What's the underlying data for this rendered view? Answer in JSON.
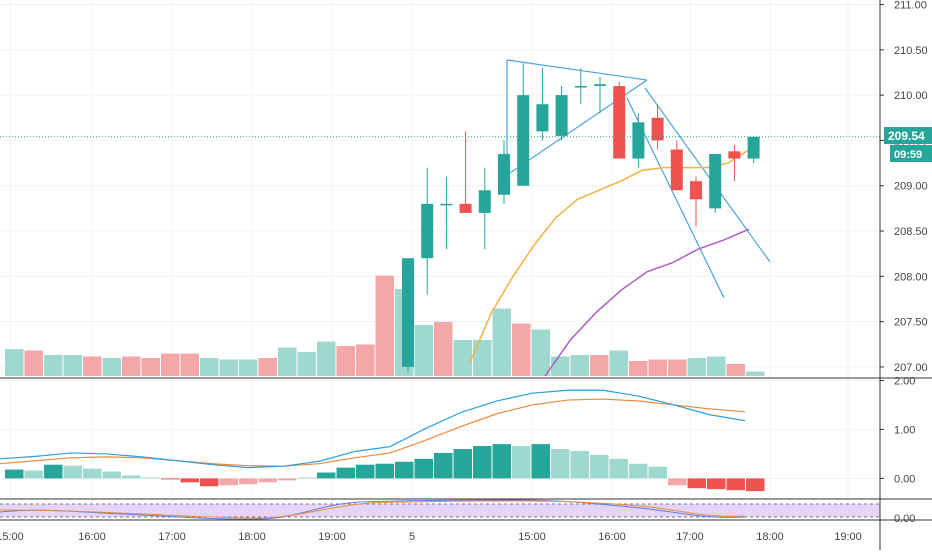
{
  "colors": {
    "up": "#26a69a",
    "down": "#ef5350",
    "vol_up": "#9fd8cf",
    "vol_down": "#f4a7a8",
    "ma_fast": "#f5b041",
    "ma_slow": "#b05cc4",
    "trendline": "#4aa3df",
    "macd_line": "#2e9fe0",
    "signal_line": "#f08a3c",
    "stoch_k": "#5b7fe0",
    "stoch_d": "#f08a3c",
    "stoch_band": "#e4d4f8",
    "grid": "#eef1f5",
    "axis_text": "#444444"
  },
  "price_axis": {
    "ticks": [
      "211.00",
      "210.50",
      "210.00",
      "209.50",
      "209.00",
      "208.50",
      "208.00",
      "207.50",
      "207.00"
    ]
  },
  "macd_axis": {
    "ticks": [
      "2.00",
      "1.00",
      "0.00"
    ]
  },
  "stoch_axis": {
    "ticks": [
      "0.00"
    ]
  },
  "last_price": {
    "label": "209.54",
    "countdown": "09:59"
  },
  "time_axis": {
    "labels": [
      "15:00",
      "16:00",
      "17:00",
      "18:00",
      "19:00",
      "5",
      "15:00",
      "16:00",
      "17:00",
      "18:00",
      "19:00"
    ]
  },
  "chart_data": {
    "type": "candlestick",
    "ylim": [
      206.9,
      211.05
    ],
    "candles": [
      {
        "o": 207.0,
        "h": 208.2,
        "l": 206.95,
        "c": 208.2
      },
      {
        "o": 208.2,
        "h": 209.2,
        "l": 207.8,
        "c": 208.8
      },
      {
        "o": 208.8,
        "h": 209.1,
        "l": 208.3,
        "c": 208.8
      },
      {
        "o": 208.8,
        "h": 209.6,
        "l": 208.7,
        "c": 208.7
      },
      {
        "o": 208.7,
        "h": 209.2,
        "l": 208.3,
        "c": 208.95
      },
      {
        "o": 208.9,
        "h": 209.5,
        "l": 208.8,
        "c": 209.35
      },
      {
        "o": 209.0,
        "h": 210.35,
        "l": 209.0,
        "c": 210.0
      },
      {
        "o": 209.6,
        "h": 210.3,
        "l": 209.5,
        "c": 209.9
      },
      {
        "o": 209.55,
        "h": 210.1,
        "l": 209.5,
        "c": 210.0
      },
      {
        "o": 210.1,
        "h": 210.3,
        "l": 209.9,
        "c": 210.1
      },
      {
        "o": 210.1,
        "h": 210.2,
        "l": 209.8,
        "c": 210.12
      },
      {
        "o": 210.1,
        "h": 210.15,
        "l": 209.3,
        "c": 209.3
      },
      {
        "o": 209.3,
        "h": 209.8,
        "l": 209.2,
        "c": 209.7
      },
      {
        "o": 209.75,
        "h": 209.9,
        "l": 209.4,
        "c": 209.5
      },
      {
        "o": 209.4,
        "h": 209.5,
        "l": 208.95,
        "c": 208.95
      },
      {
        "o": 209.05,
        "h": 209.1,
        "l": 208.55,
        "c": 208.85
      },
      {
        "o": 208.75,
        "h": 209.35,
        "l": 208.7,
        "c": 209.35
      },
      {
        "o": 209.38,
        "h": 209.45,
        "l": 209.05,
        "c": 209.3
      },
      {
        "o": 209.3,
        "h": 209.54,
        "l": 209.25,
        "c": 209.54
      }
    ],
    "ma_fast": [
      207.05,
      207.6,
      208.0,
      208.35,
      208.65,
      208.85,
      208.95,
      209.05,
      209.17,
      209.2,
      209.2,
      209.2,
      209.25,
      209.4
    ],
    "ma_slow": [
      206.9,
      207.3,
      207.6,
      207.85,
      208.05,
      208.15,
      208.3,
      208.4,
      208.52
    ],
    "volume": [
      0.18,
      0.17,
      0.14,
      0.14,
      0.13,
      0.12,
      0.13,
      0.12,
      0.15,
      0.15,
      0.12,
      0.11,
      0.11,
      0.12,
      0.19,
      0.16,
      0.23,
      0.2,
      0.21,
      0.67,
      0.58,
      0.34,
      0.36,
      0.24,
      0.24,
      0.45,
      0.35,
      0.31,
      0.13,
      0.14,
      0.14,
      0.17,
      0.1,
      0.11,
      0.11,
      0.12,
      0.13,
      0.08,
      0.03
    ],
    "volume_up": [
      true,
      false,
      true,
      true,
      false,
      true,
      false,
      false,
      false,
      false,
      true,
      true,
      true,
      false,
      true,
      true,
      true,
      false,
      false,
      false,
      true,
      true,
      false,
      true,
      true,
      true,
      false,
      true,
      true,
      true,
      false,
      true,
      false,
      false,
      false,
      true,
      true,
      false,
      true
    ],
    "macd_hist": [
      0.18,
      0.16,
      0.28,
      0.26,
      0.2,
      0.14,
      0.06,
      0.02,
      -0.02,
      -0.08,
      -0.16,
      -0.14,
      -0.12,
      -0.08,
      -0.04,
      0.02,
      0.12,
      0.22,
      0.28,
      0.3,
      0.34,
      0.4,
      0.52,
      0.6,
      0.66,
      0.7,
      0.66,
      0.7,
      0.6,
      0.56,
      0.48,
      0.4,
      0.3,
      0.24,
      -0.14,
      -0.2,
      -0.22,
      -0.24,
      -0.26
    ],
    "macd_line": [
      0.4,
      0.45,
      0.52,
      0.5,
      0.44,
      0.36,
      0.28,
      0.22,
      0.25,
      0.35,
      0.55,
      0.65,
      1.02,
      1.35,
      1.58,
      1.74,
      1.8,
      1.8,
      1.68,
      1.5,
      1.3,
      1.18
    ],
    "signal_line": [
      0.3,
      0.36,
      0.42,
      0.44,
      0.42,
      0.36,
      0.3,
      0.26,
      0.25,
      0.3,
      0.42,
      0.52,
      0.78,
      1.06,
      1.32,
      1.5,
      1.6,
      1.62,
      1.58,
      1.5,
      1.42,
      1.36
    ]
  }
}
